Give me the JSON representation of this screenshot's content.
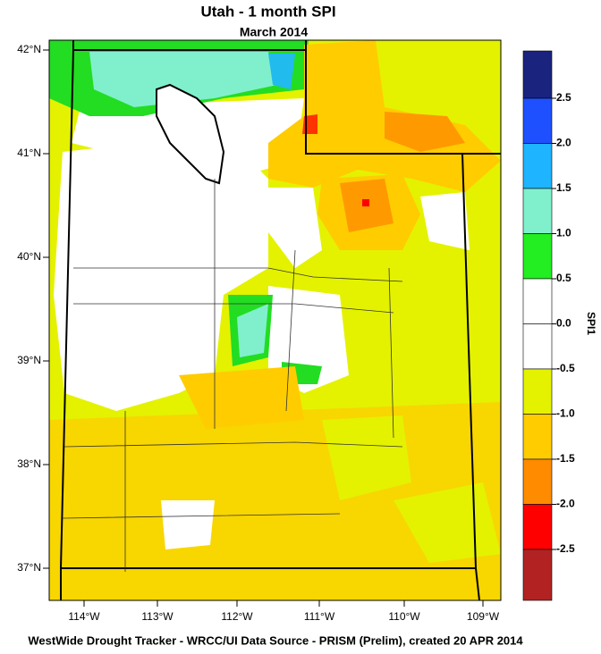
{
  "header": {
    "title": "Utah - 1 month SPI",
    "subtitle": "March 2014"
  },
  "map": {
    "lat_labels": [
      "42°N",
      "41°N",
      "40°N",
      "39°N",
      "38°N",
      "37°N"
    ],
    "lon_labels": [
      "114°W",
      "113°W",
      "112°W",
      "111°W",
      "110°W",
      "109°W"
    ]
  },
  "colorbar": {
    "label": "SPI1",
    "labels": [
      "2.5",
      "2.0",
      "1.5",
      "1.0",
      "0.5",
      "0.0",
      "-0.5",
      "-1.0",
      "-1.5",
      "-2.0",
      "-2.5"
    ]
  },
  "footer": {
    "text": "WestWide Drought Tracker - WRCC/UI  Data Source - PRISM (Prelim), created 20 APR 2014"
  }
}
